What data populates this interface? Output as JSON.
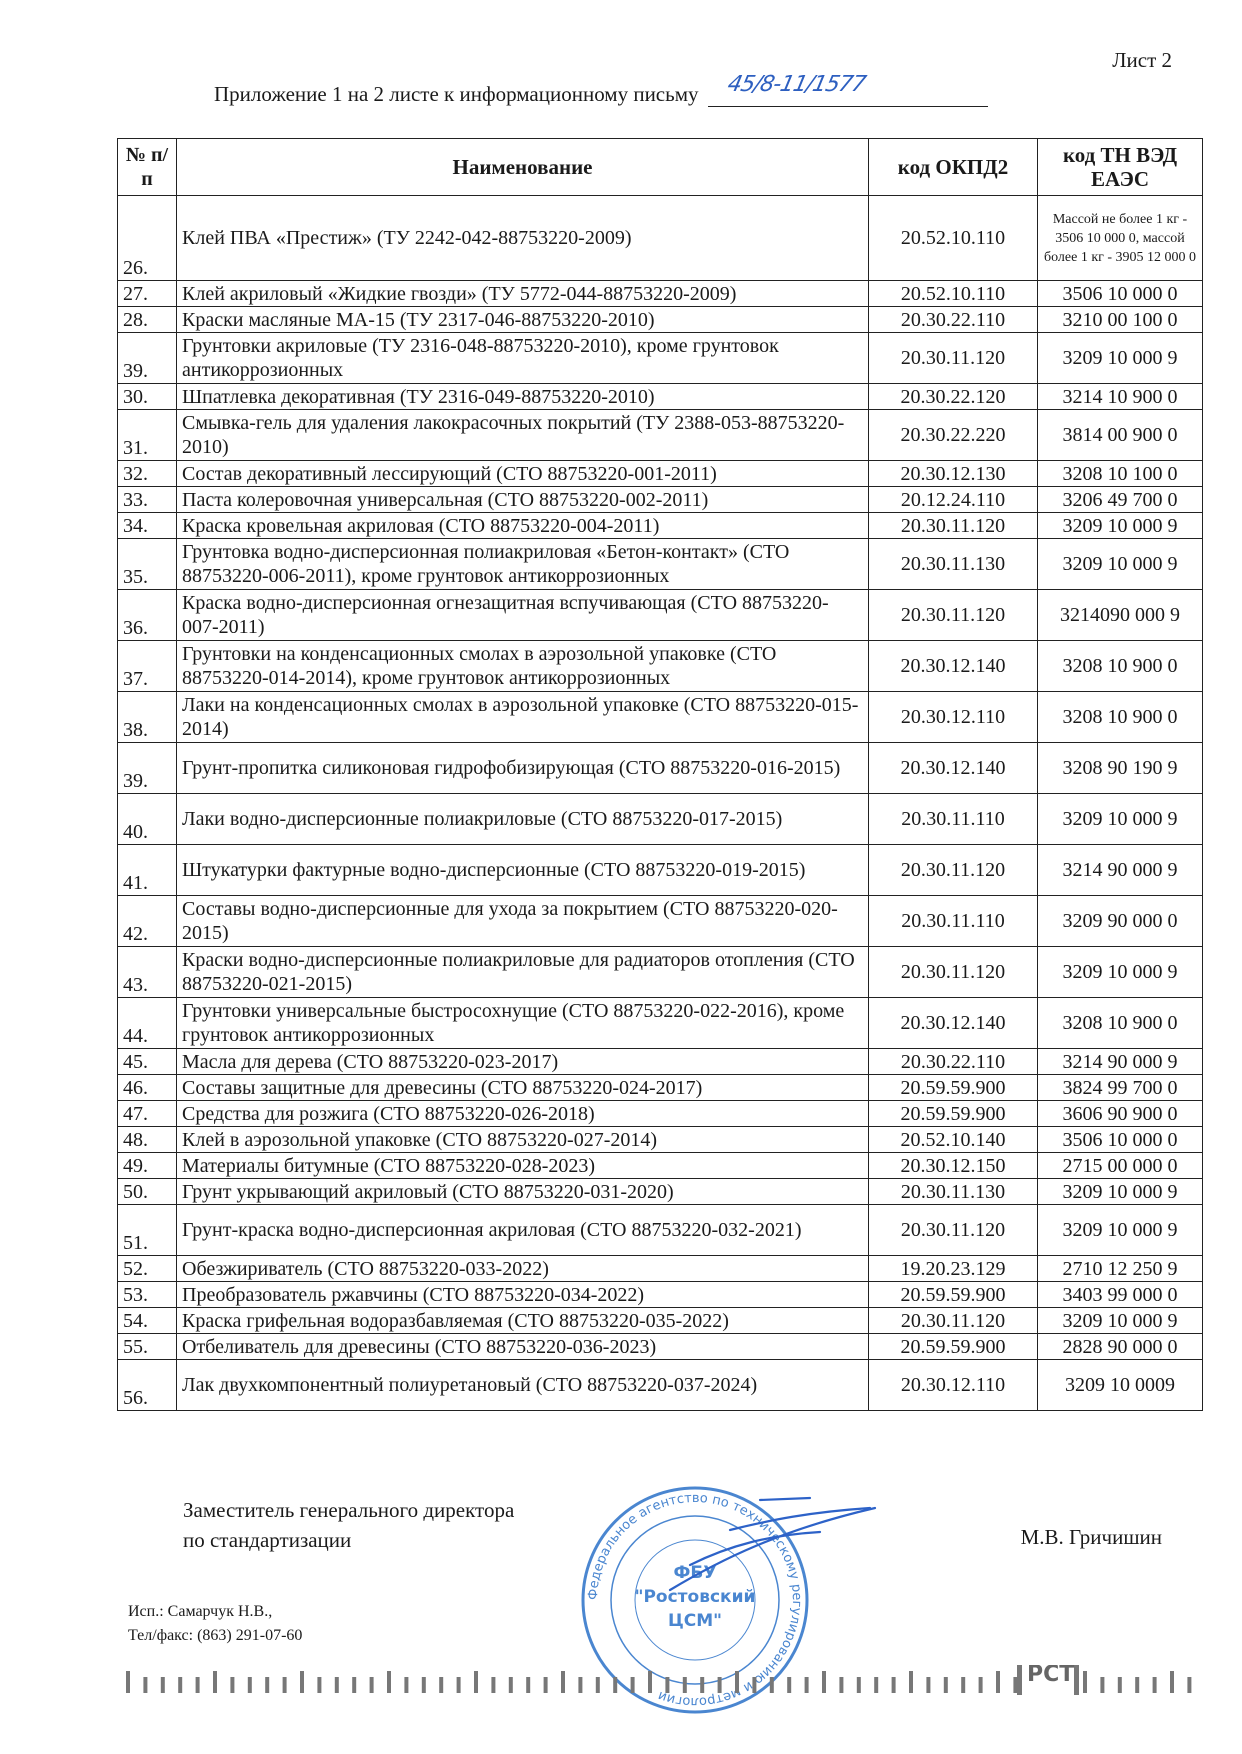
{
  "header": {
    "sheet_label": "Лист 2",
    "title": "Приложение 1 на 2 листе к информационному письму",
    "handwritten_number": "45/8-11/1577"
  },
  "table": {
    "columns": [
      "№ п/п",
      "Наименование",
      "код ОКПД2",
      "код ТН ВЭД ЕАЭС"
    ],
    "rows": [
      {
        "num": "26.",
        "name": "Клей ПВА «Престиж» (ТУ 2242-042-88753220-2009)",
        "okpd": "20.52.10.110",
        "tnved": "Массой не более 1 кг - 3506 10 000 0, массой более 1 кг - 3905 12 000 0"
      },
      {
        "num": "27.",
        "name": "Клей акриловый «Жидкие гвозди» (ТУ 5772-044-88753220-2009)",
        "okpd": "20.52.10.110",
        "tnved": "3506 10 000 0"
      },
      {
        "num": "28.",
        "name": "Краски масляные МА-15 (ТУ 2317-046-88753220-2010)",
        "okpd": "20.30.22.110",
        "tnved": "3210 00 100 0"
      },
      {
        "num": "39.",
        "name": "Грунтовки акриловые (ТУ 2316-048-88753220-2010), кроме грунтовок антикоррозионных",
        "okpd": "20.30.11.120",
        "tnved": "3209 10 000 9"
      },
      {
        "num": "30.",
        "name": "Шпатлевка декоративная  (ТУ 2316-049-88753220-2010)",
        "okpd": "20.30.22.120",
        "tnved": "3214 10 900 0"
      },
      {
        "num": "31.",
        "name": "Смывка-гель для удаления лакокрасочных покрытий (ТУ 2388-053-88753220-2010)",
        "okpd": "20.30.22.220",
        "tnved": "3814 00 900 0"
      },
      {
        "num": "32.",
        "name": "Состав декоративный лессирующий (СТО 88753220-001-2011)",
        "okpd": "20.30.12.130",
        "tnved": "3208 10 100 0"
      },
      {
        "num": "33.",
        "name": "Паста колеровочная универсальная (СТО 88753220-002-2011)",
        "okpd": "20.12.24.110",
        "tnved": "3206 49 700 0"
      },
      {
        "num": "34.",
        "name": "Краска кровельная акриловая (СТО 88753220-004-2011)",
        "okpd": "20.30.11.120",
        "tnved": "3209 10 000 9"
      },
      {
        "num": "35.",
        "name": "Грунтовка водно-дисперсионная полиакриловая «Бетон-контакт» (СТО 88753220-006-2011), кроме грунтовок антикоррозионных",
        "okpd": "20.30.11.130",
        "tnved": "3209 10 000 9"
      },
      {
        "num": "36.",
        "name": "Краска водно-дисперсионная огнезащитная вспучивающая (СТО 88753220-007-2011)",
        "okpd": "20.30.11.120",
        "tnved": "3214090 000 9"
      },
      {
        "num": "37.",
        "name": "Грунтовки на конденсационных смолах в аэрозольной упаковке (СТО 88753220-014-2014), кроме грунтовок антикоррозионных",
        "okpd": "20.30.12.140",
        "tnved": "3208 10 900 0"
      },
      {
        "num": "38.",
        "name": "Лаки на конденсационных смолах в аэрозольной упаковке (СТО 88753220-015-2014)",
        "okpd": "20.30.12.110",
        "tnved": "3208 10 900 0"
      },
      {
        "num": "39.",
        "name": "Грунт-пропитка силиконовая гидрофобизирующая (СТО 88753220-016-2015)",
        "okpd": "20.30.12.140",
        "tnved": "3208 90 190 9"
      },
      {
        "num": "40.",
        "name": "Лаки водно-дисперсионные полиакриловые (СТО 88753220-017-2015)",
        "okpd": "20.30.11.110",
        "tnved": "3209 10 000 9"
      },
      {
        "num": "41.",
        "name": "Штукатурки фактурные водно-дисперсионные (СТО 88753220-019-2015)",
        "okpd": "20.30.11.120",
        "tnved": "3214 90 000 9"
      },
      {
        "num": "42.",
        "name": "Составы водно-дисперсионные для ухода за покрытием (СТО 88753220-020-2015)",
        "okpd": "20.30.11.110",
        "tnved": "3209 90 000 0"
      },
      {
        "num": "43.",
        "name": "Краски водно-дисперсионные полиакриловые для радиаторов отопления (СТО 88753220-021-2015)",
        "okpd": "20.30.11.120",
        "tnved": "3209 10 000 9"
      },
      {
        "num": "44.",
        "name": "Грунтовки универсальные быстросохнущие (СТО 88753220-022-2016), кроме грунтовок антикоррозионных",
        "okpd": "20.30.12.140",
        "tnved": "3208 10 900 0"
      },
      {
        "num": "45.",
        "name": "Масла для дерева (СТО 88753220-023-2017)",
        "okpd": "20.30.22.110",
        "tnved": "3214 90 000 9"
      },
      {
        "num": "46.",
        "name": "Составы защитные для древесины (СТО 88753220-024-2017)",
        "okpd": "20.59.59.900",
        "tnved": "3824 99 700 0"
      },
      {
        "num": "47.",
        "name": "Средства для розжига (СТО 88753220-026-2018)",
        "okpd": "20.59.59.900",
        "tnved": "3606 90 900 0"
      },
      {
        "num": "48.",
        "name": "Клей в аэрозольной упаковке (СТО 88753220-027-2014)",
        "okpd": "20.52.10.140",
        "tnved": "3506 10 000 0"
      },
      {
        "num": "49.",
        "name": "Материалы битумные (СТО 88753220-028-2023)",
        "okpd": "20.30.12.150",
        "tnved": "2715 00 000 0"
      },
      {
        "num": "50.",
        "name": "Грунт укрывающий акриловый (СТО 88753220-031-2020)",
        "okpd": "20.30.11.130",
        "tnved": "3209 10 000 9"
      },
      {
        "num": "51.",
        "name": "Грунт-краска водно-дисперсионная акриловая (СТО 88753220-032-2021)",
        "okpd": "20.30.11.120",
        "tnved": "3209 10 000 9"
      },
      {
        "num": "52.",
        "name": "Обезжириватель (СТО 88753220-033-2022)",
        "okpd": "19.20.23.129",
        "tnved": "2710 12 250 9"
      },
      {
        "num": "53.",
        "name": "Преобразователь ржавчины (СТО 88753220-034-2022)",
        "okpd": "20.59.59.900",
        "tnved": "3403 99 000 0"
      },
      {
        "num": "54.",
        "name": "Краска грифельная водоразбавляемая (СТО 88753220-035-2022)",
        "okpd": "20.30.11.120",
        "tnved": "3209 10 000 9"
      },
      {
        "num": "55.",
        "name": "Отбеливатель для древесины (СТО 88753220-036-2023)",
        "okpd": "20.59.59.900",
        "tnved": "2828 90 000 0"
      },
      {
        "num": "56.",
        "name": "Лак двухкомпонентный полиуретановый (СТО 88753220-037-2024)",
        "okpd": "20.30.12.110",
        "tnved": "3209 10 0009"
      }
    ]
  },
  "signature": {
    "position_line1": "Заместитель генерального директора",
    "position_line2": "по стандартизации",
    "name": "М.В. Гричишин"
  },
  "executor": {
    "name": "Исп.: Самарчук Н.В.,",
    "phone": "Тел/факс: (863) 291-07-60"
  },
  "stamp": {
    "center_line1": "ФБУ",
    "center_line2": "\"Ростовский",
    "center_line3": "ЦСМ\"",
    "ring_text": "Федеральное агентство по техническому регулированию и метрологии",
    "color": "#4a86d0"
  },
  "footer": {
    "logo": "РСТ"
  }
}
